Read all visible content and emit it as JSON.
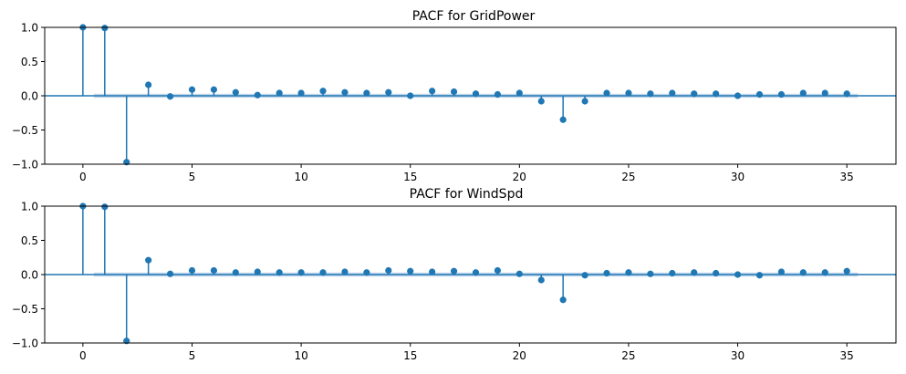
{
  "chart_data": [
    {
      "type": "stem",
      "title": "PACF for GridPower",
      "xlabel": "",
      "ylabel": "",
      "xlim": [
        -1.75,
        37.25
      ],
      "ylim": [
        -1.0,
        1.0
      ],
      "xticks": [
        0,
        5,
        10,
        15,
        20,
        25,
        30,
        35
      ],
      "yticks": [
        -1.0,
        -0.5,
        0.0,
        0.5,
        1.0
      ],
      "xtick_labels": [
        "0",
        "5",
        "10",
        "15",
        "20",
        "25",
        "30",
        "35"
      ],
      "ytick_labels": [
        "−1.0",
        "−0.5",
        "0.0",
        "0.5",
        "1.0"
      ],
      "grid": false,
      "confidence_band": {
        "x_range": [
          0.5,
          35.5
        ],
        "lower": -0.03,
        "upper": 0.03
      },
      "x": [
        0,
        1,
        2,
        3,
        4,
        5,
        6,
        7,
        8,
        9,
        10,
        11,
        12,
        13,
        14,
        15,
        16,
        17,
        18,
        19,
        20,
        21,
        22,
        23,
        24,
        25,
        26,
        27,
        28,
        29,
        30,
        31,
        32,
        33,
        34,
        35
      ],
      "values": [
        1.0,
        0.99,
        -0.97,
        0.16,
        -0.01,
        0.09,
        0.09,
        0.05,
        0.01,
        0.04,
        0.04,
        0.07,
        0.05,
        0.04,
        0.05,
        0.0,
        0.07,
        0.06,
        0.03,
        0.02,
        0.04,
        -0.08,
        -0.35,
        -0.08,
        0.04,
        0.04,
        0.03,
        0.04,
        0.03,
        0.03,
        0.0,
        0.02,
        0.02,
        0.04,
        0.04,
        0.03
      ]
    },
    {
      "type": "stem",
      "title": "PACF for WindSpd",
      "xlabel": "",
      "ylabel": "",
      "xlim": [
        -1.75,
        37.25
      ],
      "ylim": [
        -1.0,
        1.0
      ],
      "xticks": [
        0,
        5,
        10,
        15,
        20,
        25,
        30,
        35
      ],
      "yticks": [
        -1.0,
        -0.5,
        0.0,
        0.5,
        1.0
      ],
      "xtick_labels": [
        "0",
        "5",
        "10",
        "15",
        "20",
        "25",
        "30",
        "35"
      ],
      "ytick_labels": [
        "−1.0",
        "−0.5",
        "0.0",
        "0.5",
        "1.0"
      ],
      "grid": false,
      "confidence_band": {
        "x_range": [
          0.5,
          35.5
        ],
        "lower": -0.03,
        "upper": 0.03
      },
      "x": [
        0,
        1,
        2,
        3,
        4,
        5,
        6,
        7,
        8,
        9,
        10,
        11,
        12,
        13,
        14,
        15,
        16,
        17,
        18,
        19,
        20,
        21,
        22,
        23,
        24,
        25,
        26,
        27,
        28,
        29,
        30,
        31,
        32,
        33,
        34,
        35
      ],
      "values": [
        1.0,
        0.99,
        -0.97,
        0.21,
        0.01,
        0.06,
        0.06,
        0.03,
        0.04,
        0.03,
        0.03,
        0.03,
        0.04,
        0.03,
        0.06,
        0.05,
        0.04,
        0.05,
        0.03,
        0.06,
        0.01,
        -0.08,
        -0.37,
        -0.01,
        0.02,
        0.03,
        0.01,
        0.02,
        0.03,
        0.02,
        0.0,
        -0.01,
        0.04,
        0.03,
        0.03,
        0.05
      ]
    }
  ],
  "colors": {
    "stem": "#1f77b4",
    "band": "#c6d9ec",
    "zero_line": "#1f77b4",
    "frame": "#000000"
  }
}
